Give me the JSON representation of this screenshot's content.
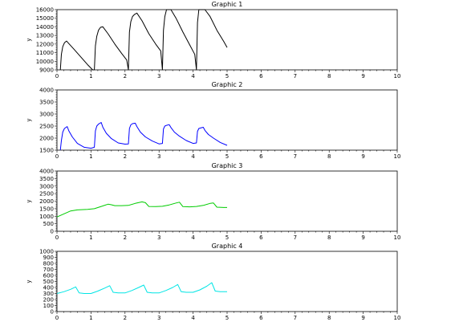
{
  "chart_data": [
    {
      "type": "line",
      "title": "Graphic 1",
      "xlabel": "",
      "ylabel": "y",
      "xlim": [
        0,
        10
      ],
      "ylim": [
        9000,
        16000
      ],
      "xticks": [
        0,
        1,
        2,
        3,
        4,
        5,
        6,
        7,
        8,
        9,
        10
      ],
      "yticks": [
        9000,
        10000,
        11000,
        12000,
        13000,
        14000,
        15000,
        16000
      ],
      "color": "#000000",
      "series": [
        {
          "x": [
            0.1,
            0.13,
            0.17,
            0.22,
            0.28,
            0.35,
            0.5,
            0.7,
            0.9,
            1.05,
            1.1,
            1.13,
            1.17,
            1.22,
            1.28,
            1.35,
            1.5,
            1.7,
            1.9,
            2.05,
            2.1,
            2.13,
            2.17,
            2.22,
            2.28,
            2.35,
            2.5,
            2.7,
            2.9,
            3.05,
            3.1,
            3.13,
            3.17,
            3.22,
            3.28,
            3.35,
            3.5,
            3.7,
            3.9,
            4.05,
            4.1,
            4.13,
            4.17,
            4.22,
            4.28,
            4.35,
            4.5,
            4.7,
            4.9,
            5.0
          ],
          "y": [
            9000,
            10800,
            11700,
            12150,
            12350,
            12050,
            11400,
            10500,
            9600,
            9000,
            9000,
            11800,
            12900,
            13600,
            13950,
            14000,
            13200,
            12000,
            10900,
            10150,
            9000,
            13400,
            14600,
            15200,
            15450,
            15600,
            14700,
            13200,
            12000,
            11200,
            9000,
            13600,
            15200,
            16000,
            16000,
            16000,
            15000,
            13400,
            11900,
            10800,
            9000,
            14500,
            16000,
            16000,
            16000,
            16000,
            15200,
            13600,
            12300,
            11600
          ]
        }
      ]
    },
    {
      "type": "line",
      "title": "Graphic 2",
      "xlabel": "",
      "ylabel": "y",
      "xlim": [
        0,
        10
      ],
      "ylim": [
        1500,
        4000
      ],
      "xticks": [
        0,
        1,
        2,
        3,
        4,
        5,
        6,
        7,
        8,
        9,
        10
      ],
      "yticks": [
        1500,
        2000,
        2500,
        3000,
        3500,
        4000
      ],
      "color": "#0000ff",
      "series": [
        {
          "x": [
            0.1,
            0.13,
            0.17,
            0.22,
            0.3,
            0.35,
            0.45,
            0.6,
            0.8,
            1.0,
            1.1,
            1.13,
            1.17,
            1.22,
            1.3,
            1.35,
            1.45,
            1.6,
            1.8,
            2.0,
            2.1,
            2.13,
            2.17,
            2.22,
            2.3,
            2.35,
            2.45,
            2.6,
            2.8,
            3.0,
            3.1,
            3.13,
            3.17,
            3.22,
            3.3,
            3.35,
            3.45,
            3.6,
            3.8,
            4.0,
            4.1,
            4.13,
            4.17,
            4.22,
            4.3,
            4.35,
            4.45,
            4.6,
            4.8,
            5.0
          ],
          "y": [
            1500,
            1900,
            2250,
            2400,
            2480,
            2300,
            2050,
            1780,
            1620,
            1580,
            1620,
            2300,
            2500,
            2580,
            2650,
            2450,
            2200,
            1980,
            1800,
            1750,
            1760,
            2400,
            2550,
            2600,
            2620,
            2480,
            2250,
            2050,
            1880,
            1760,
            1780,
            2380,
            2500,
            2530,
            2560,
            2440,
            2250,
            2080,
            1900,
            1780,
            1800,
            2280,
            2400,
            2420,
            2450,
            2320,
            2150,
            2000,
            1820,
            1700
          ]
        }
      ]
    },
    {
      "type": "line",
      "title": "Graphic 3",
      "xlabel": "",
      "ylabel": "y",
      "xlim": [
        0,
        10
      ],
      "ylim": [
        0,
        4000
      ],
      "xticks": [
        0,
        1,
        2,
        3,
        4,
        5,
        6,
        7,
        8,
        9,
        10
      ],
      "yticks": [
        0,
        500,
        1000,
        1500,
        2000,
        2500,
        3000,
        3500,
        4000
      ],
      "color": "#00cc00",
      "series": [
        {
          "x": [
            0.0,
            0.2,
            0.4,
            0.6,
            0.9,
            1.1,
            1.3,
            1.5,
            1.6,
            1.7,
            1.9,
            2.1,
            2.3,
            2.5,
            2.6,
            2.7,
            2.9,
            3.1,
            3.3,
            3.5,
            3.6,
            3.7,
            3.9,
            4.1,
            4.3,
            4.5,
            4.6,
            4.7,
            4.9,
            5.0
          ],
          "y": [
            950,
            1150,
            1350,
            1420,
            1450,
            1500,
            1650,
            1800,
            1760,
            1700,
            1700,
            1720,
            1850,
            1950,
            1900,
            1650,
            1640,
            1660,
            1750,
            1880,
            1930,
            1640,
            1620,
            1650,
            1720,
            1850,
            1880,
            1600,
            1580,
            1580
          ]
        }
      ]
    },
    {
      "type": "line",
      "title": "Graphic 4",
      "xlabel": "",
      "ylabel": "y",
      "xlim": [
        0,
        10
      ],
      "ylim": [
        0,
        1000
      ],
      "xticks": [
        0,
        1,
        2,
        3,
        4,
        5,
        6,
        7,
        8,
        9,
        10
      ],
      "yticks": [
        0,
        100,
        200,
        300,
        400,
        500,
        600,
        700,
        800,
        900,
        1000
      ],
      "color": "#00e5e5",
      "series": [
        {
          "x": [
            0.0,
            0.2,
            0.4,
            0.55,
            0.65,
            0.8,
            1.0,
            1.2,
            1.4,
            1.55,
            1.65,
            1.8,
            2.0,
            2.2,
            2.4,
            2.55,
            2.65,
            2.8,
            3.0,
            3.2,
            3.4,
            3.55,
            3.65,
            3.8,
            4.0,
            4.2,
            4.4,
            4.55,
            4.65,
            4.8,
            5.0
          ],
          "y": [
            300,
            330,
            370,
            410,
            310,
            300,
            300,
            340,
            390,
            430,
            320,
            310,
            310,
            350,
            400,
            440,
            320,
            310,
            310,
            350,
            400,
            450,
            330,
            320,
            320,
            360,
            420,
            480,
            340,
            330,
            330
          ]
        }
      ]
    }
  ]
}
